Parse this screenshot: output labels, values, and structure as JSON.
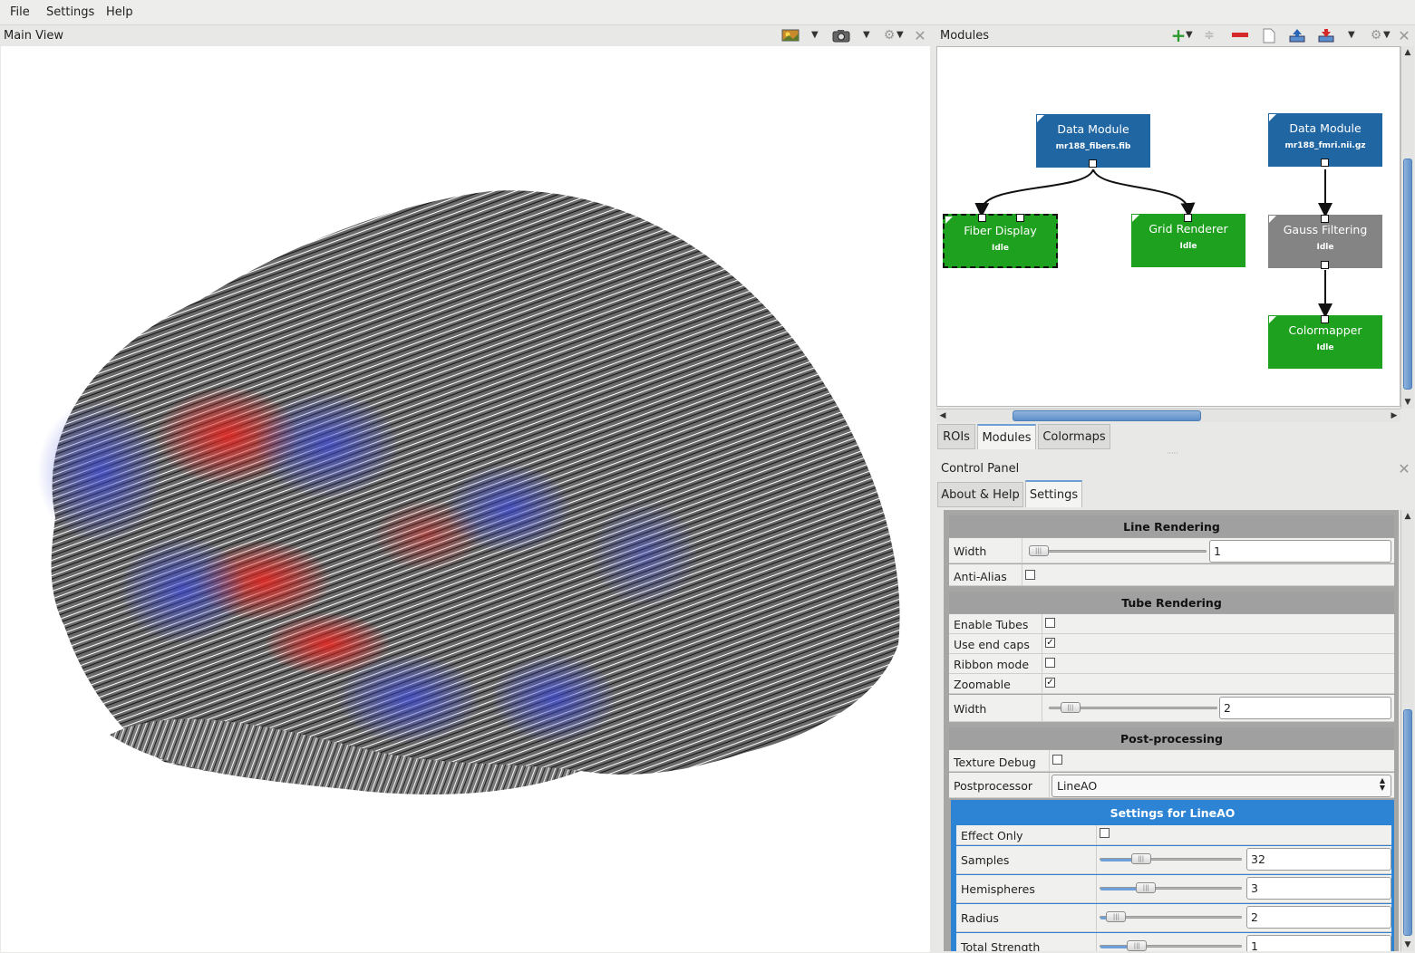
{
  "menu": {
    "file": "File",
    "settings": "Settings",
    "help": "Help"
  },
  "main_view": {
    "title": "Main View"
  },
  "modules_dock": {
    "title": "Modules",
    "graph": {
      "data_fibers": {
        "name": "Data Module",
        "sub": "mr188_fibers.fib",
        "color": "#1f66a3"
      },
      "data_fmri": {
        "name": "Data Module",
        "sub": "mr188_fmri.nii.gz",
        "color": "#1f66a3"
      },
      "fiber_display": {
        "name": "Fiber Display",
        "sub": "Idle",
        "color": "#1ea11e"
      },
      "grid_renderer": {
        "name": "Grid Renderer",
        "sub": "Idle",
        "color": "#1ea11e"
      },
      "gauss_filtering": {
        "name": "Gauss Filtering",
        "sub": "Idle",
        "color": "#848484"
      },
      "colormapper": {
        "name": "Colormapper",
        "sub": "Idle",
        "color": "#1ea11e"
      }
    },
    "tabs": {
      "rois": "ROIs",
      "modules": "Modules",
      "colormaps": "Colormaps"
    }
  },
  "control_panel": {
    "title": "Control Panel",
    "tabs": {
      "about": "About & Help",
      "settings": "Settings"
    },
    "line_rendering": {
      "header": "Line Rendering",
      "width_label": "Width",
      "width_value": "1",
      "width_fraction": 0.02,
      "antialias_label": "Anti-Alias",
      "antialias_checked": false
    },
    "tube_rendering": {
      "header": "Tube Rendering",
      "enable_tubes_label": "Enable Tubes",
      "enable_tubes_checked": false,
      "end_caps_label": "Use end caps",
      "end_caps_checked": true,
      "ribbon_label": "Ribbon mode",
      "ribbon_checked": false,
      "zoomable_label": "Zoomable",
      "zoomable_checked": true,
      "width_label": "Width",
      "width_value": "2",
      "width_fraction": 0.1
    },
    "post_processing": {
      "header": "Post-processing",
      "texture_debug_label": "Texture Debug",
      "texture_debug_checked": false,
      "postprocessor_label": "Postprocessor",
      "postprocessor_value": "LineAO"
    },
    "lineao": {
      "header": "Settings for LineAO",
      "effect_only_label": "Effect Only",
      "effect_only_checked": false,
      "samples_label": "Samples",
      "samples_value": "32",
      "samples_fraction": 0.27,
      "hemispheres_label": "Hemispheres",
      "hemispheres_value": "3",
      "hemispheres_fraction": 0.31,
      "radius_label": "Radius",
      "radius_value": "2",
      "radius_fraction": 0.08,
      "strength_label": "Total Strength",
      "strength_value": "1",
      "strength_fraction": 0.24
    }
  }
}
